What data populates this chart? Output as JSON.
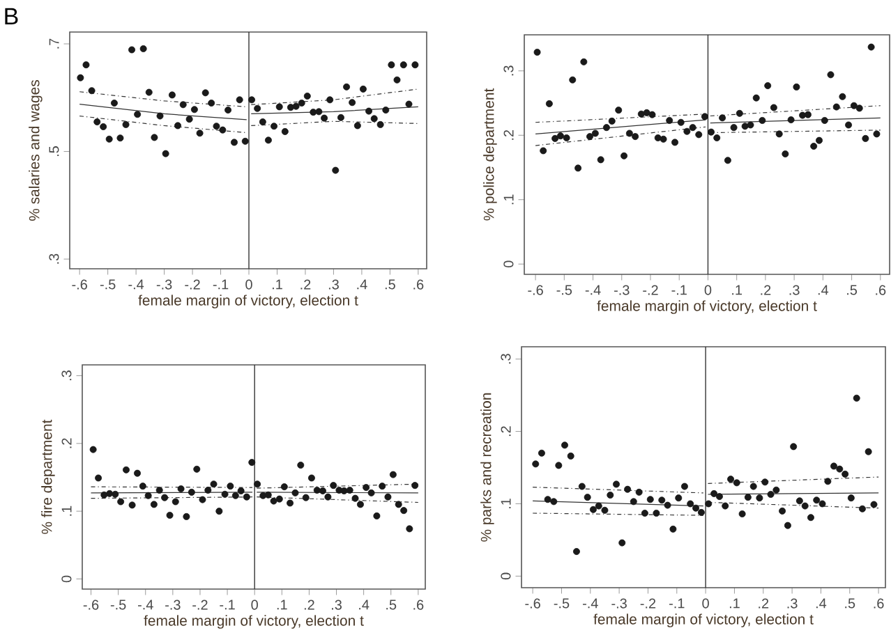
{
  "chart_data": [
    {
      "type": "scatter",
      "title": "B",
      "xlabel": "female margin of victory, election t",
      "ylabel": "% salaries and wages",
      "xlim": [
        -0.635,
        0.63
      ],
      "ylim": [
        0.282,
        0.722
      ],
      "xticks": [
        {
          "value": -0.6,
          "label": "-.6"
        },
        {
          "value": -0.5,
          "label": "-.5"
        },
        {
          "value": -0.4,
          "label": "-.4"
        },
        {
          "value": -0.3,
          "label": "-.3"
        },
        {
          "value": -0.2,
          "label": "-.2"
        },
        {
          "value": -0.1,
          "label": "-.1"
        },
        0,
        {
          "value": 0.1,
          "label": ".1"
        },
        {
          "value": 0.2,
          "label": ".2"
        },
        {
          "value": 0.3,
          "label": ".3"
        },
        {
          "value": 0.4,
          "label": ".4"
        },
        {
          "value": 0.5,
          "label": ".5"
        },
        {
          "value": 0.6,
          "label": ".6"
        }
      ],
      "yticks": [
        {
          "value": 0.3,
          "label": ".3"
        },
        {
          "value": 0.5,
          "label": ".5"
        },
        {
          "value": 0.7,
          "label": ".7"
        }
      ],
      "ref_lines": [
        {
          "axis": "x",
          "value": 0,
          "color": "#333333"
        }
      ],
      "series": [
        {
          "marker": "circle",
          "color": "#1a1a1a",
          "x": [
            -0.597,
            -0.577,
            -0.557,
            -0.538,
            -0.516,
            -0.495,
            -0.477,
            -0.456,
            -0.436,
            -0.415,
            -0.395,
            -0.374,
            -0.354,
            -0.335,
            -0.315,
            -0.295,
            -0.272,
            -0.252,
            -0.233,
            -0.211,
            -0.193,
            -0.174,
            -0.154,
            -0.133,
            -0.115,
            -0.093,
            -0.074,
            -0.052,
            -0.033,
            -0.013,
            0.01,
            0.03,
            0.049,
            0.069,
            0.089,
            0.108,
            0.128,
            0.148,
            0.167,
            0.187,
            0.207,
            0.228,
            0.248,
            0.267,
            0.287,
            0.307,
            0.326,
            0.346,
            0.366,
            0.385,
            0.405,
            0.425,
            0.444,
            0.466,
            0.485,
            0.505,
            0.525,
            0.548,
            0.567,
            0.589
          ],
          "values": [
            0.637,
            0.661,
            0.613,
            0.555,
            0.546,
            0.523,
            0.59,
            0.525,
            0.55,
            0.689,
            0.569,
            0.691,
            0.61,
            0.526,
            0.566,
            0.496,
            0.605,
            0.548,
            0.587,
            0.56,
            0.578,
            0.534,
            0.609,
            0.59,
            0.547,
            0.54,
            0.577,
            0.517,
            0.596,
            0.519,
            0.596,
            0.58,
            0.555,
            0.521,
            0.547,
            0.583,
            0.537,
            0.582,
            0.584,
            0.59,
            0.603,
            0.573,
            0.574,
            0.562,
            0.596,
            0.465,
            0.563,
            0.62,
            0.591,
            0.548,
            0.616,
            0.575,
            0.561,
            0.55,
            0.577,
            0.661,
            0.633,
            0.661,
            0.588,
            0.661
          ]
        },
        {
          "type": "line",
          "marker": "none",
          "line_style": "solid",
          "color": "#333333",
          "x": [
            -0.6,
            -0.3,
            -0.008
          ],
          "values": [
            0.588,
            0.57,
            0.559
          ]
        },
        {
          "type": "line",
          "marker": "none",
          "line_style": "dashed",
          "color": "#333333",
          "x": [
            -0.6,
            -0.3,
            -0.008
          ],
          "values": [
            0.611,
            0.594,
            0.583
          ]
        },
        {
          "type": "line",
          "marker": "none",
          "line_style": "dashed",
          "color": "#333333",
          "x": [
            -0.6,
            -0.3,
            -0.008
          ],
          "values": [
            0.566,
            0.548,
            0.535
          ]
        },
        {
          "type": "line",
          "marker": "none",
          "line_style": "solid",
          "color": "#333333",
          "x": [
            0.008,
            0.3,
            0.6
          ],
          "values": [
            0.57,
            0.574,
            0.583
          ]
        },
        {
          "type": "line",
          "marker": "none",
          "line_style": "dashed",
          "color": "#333333",
          "x": [
            0.008,
            0.3,
            0.6
          ],
          "values": [
            0.587,
            0.596,
            0.616
          ]
        },
        {
          "type": "line",
          "marker": "none",
          "line_style": "dashed",
          "color": "#333333",
          "x": [
            0.008,
            0.3,
            0.6
          ],
          "values": [
            0.548,
            0.556,
            0.552
          ]
        }
      ]
    },
    {
      "type": "scatter",
      "xlabel": "female margin of victory, election t",
      "ylabel": "% police department",
      "xlim": [
        -0.639,
        0.632
      ],
      "ylim": [
        -0.016,
        0.356
      ],
      "xticks": [
        {
          "value": -0.6,
          "label": "-.6"
        },
        {
          "value": -0.5,
          "label": "-.5"
        },
        {
          "value": -0.4,
          "label": "-.4"
        },
        {
          "value": -0.3,
          "label": "-.3"
        },
        {
          "value": -0.2,
          "label": "-.2"
        },
        {
          "value": -0.1,
          "label": "-.1"
        },
        0,
        {
          "value": 0.1,
          "label": ".1"
        },
        {
          "value": 0.2,
          "label": ".2"
        },
        {
          "value": 0.3,
          "label": ".3"
        },
        {
          "value": 0.4,
          "label": ".4"
        },
        {
          "value": 0.5,
          "label": ".5"
        },
        {
          "value": 0.6,
          "label": ".6"
        }
      ],
      "yticks": [
        0,
        {
          "value": 0.1,
          "label": ".1"
        },
        {
          "value": 0.2,
          "label": ".2"
        },
        {
          "value": 0.3,
          "label": ".3"
        }
      ],
      "ref_lines": [
        {
          "axis": "x",
          "value": 0,
          "color": "#333333"
        }
      ],
      "series": [
        {
          "marker": "circle",
          "color": "#1a1a1a",
          "x": [
            -0.594,
            -0.573,
            -0.552,
            -0.532,
            -0.513,
            -0.492,
            -0.471,
            -0.452,
            -0.432,
            -0.411,
            -0.392,
            -0.373,
            -0.353,
            -0.334,
            -0.311,
            -0.292,
            -0.273,
            -0.253,
            -0.232,
            -0.213,
            -0.194,
            -0.174,
            -0.155,
            -0.134,
            -0.115,
            -0.094,
            -0.073,
            -0.053,
            -0.032,
            -0.011,
            0.011,
            0.031,
            0.05,
            0.069,
            0.09,
            0.11,
            0.129,
            0.148,
            0.168,
            0.189,
            0.208,
            0.229,
            0.248,
            0.269,
            0.289,
            0.308,
            0.329,
            0.348,
            0.368,
            0.387,
            0.406,
            0.427,
            0.447,
            0.468,
            0.489,
            0.508,
            0.527,
            0.548,
            0.568,
            0.587
          ],
          "values": [
            0.329,
            0.176,
            0.249,
            0.195,
            0.199,
            0.196,
            0.286,
            0.149,
            0.314,
            0.198,
            0.203,
            0.162,
            0.212,
            0.222,
            0.239,
            0.168,
            0.203,
            0.198,
            0.233,
            0.235,
            0.232,
            0.196,
            0.194,
            0.223,
            0.189,
            0.22,
            0.206,
            0.212,
            0.201,
            0.229,
            0.205,
            0.196,
            0.227,
            0.161,
            0.212,
            0.234,
            0.214,
            0.216,
            0.258,
            0.223,
            0.277,
            0.243,
            0.202,
            0.171,
            0.224,
            0.275,
            0.231,
            0.232,
            0.183,
            0.192,
            0.223,
            0.294,
            0.244,
            0.26,
            0.216,
            0.246,
            0.242,
            0.195,
            0.337,
            0.202
          ]
        },
        {
          "type": "line",
          "marker": "none",
          "line_style": "solid",
          "color": "#333333",
          "x": [
            -0.6,
            -0.008
          ],
          "values": [
            0.202,
            0.224
          ]
        },
        {
          "type": "line",
          "marker": "none",
          "line_style": "dashed",
          "color": "#333333",
          "x": [
            -0.6,
            -0.008
          ],
          "values": [
            0.22,
            0.233
          ]
        },
        {
          "type": "line",
          "marker": "none",
          "line_style": "dashed",
          "color": "#333333",
          "x": [
            -0.6,
            -0.008
          ],
          "values": [
            0.184,
            0.213
          ]
        },
        {
          "type": "line",
          "marker": "none",
          "line_style": "solid",
          "color": "#333333",
          "x": [
            0.008,
            0.6
          ],
          "values": [
            0.219,
            0.227
          ]
        },
        {
          "type": "line",
          "marker": "none",
          "line_style": "dashed",
          "color": "#333333",
          "x": [
            0.008,
            0.6
          ],
          "values": [
            0.23,
            0.246
          ]
        },
        {
          "type": "line",
          "marker": "none",
          "line_style": "dashed",
          "color": "#333333",
          "x": [
            0.008,
            0.6
          ],
          "values": [
            0.204,
            0.208
          ]
        }
      ]
    },
    {
      "type": "scatter",
      "xlabel": "female margin of victory, election t",
      "ylabel": "% fire department",
      "xlim": [
        -0.632,
        0.626
      ],
      "ylim": [
        -0.015,
        0.316
      ],
      "xticks": [
        {
          "value": -0.6,
          "label": "-.6"
        },
        {
          "value": -0.5,
          "label": "-.5"
        },
        {
          "value": -0.4,
          "label": "-.4"
        },
        {
          "value": -0.3,
          "label": "-.3"
        },
        {
          "value": -0.2,
          "label": "-.2"
        },
        {
          "value": -0.1,
          "label": "-.1"
        },
        0,
        {
          "value": 0.1,
          "label": ".1"
        },
        {
          "value": 0.2,
          "label": ".2"
        },
        {
          "value": 0.3,
          "label": ".3"
        },
        {
          "value": 0.4,
          "label": ".4"
        },
        {
          "value": 0.5,
          "label": ".5"
        },
        {
          "value": 0.6,
          "label": ".6"
        }
      ],
      "yticks": [
        0,
        {
          "value": 0.1,
          "label": ".1"
        },
        {
          "value": 0.2,
          "label": ".2"
        },
        {
          "value": 0.3,
          "label": ".3"
        }
      ],
      "ref_lines": [
        {
          "axis": "x",
          "value": 0,
          "color": "#333333"
        }
      ],
      "series": [
        {
          "marker": "circle",
          "color": "#1a1a1a",
          "x": [
            -0.592,
            -0.573,
            -0.552,
            -0.532,
            -0.511,
            -0.491,
            -0.471,
            -0.449,
            -0.43,
            -0.41,
            -0.39,
            -0.369,
            -0.349,
            -0.33,
            -0.311,
            -0.29,
            -0.27,
            -0.25,
            -0.231,
            -0.212,
            -0.191,
            -0.171,
            -0.15,
            -0.13,
            -0.109,
            -0.089,
            -0.07,
            -0.05,
            -0.029,
            -0.01,
            0.01,
            0.031,
            0.05,
            0.07,
            0.091,
            0.109,
            0.13,
            0.149,
            0.169,
            0.188,
            0.209,
            0.229,
            0.25,
            0.269,
            0.289,
            0.31,
            0.328,
            0.349,
            0.369,
            0.388,
            0.409,
            0.428,
            0.448,
            0.468,
            0.489,
            0.508,
            0.528,
            0.547,
            0.568,
            0.588
          ],
          "values": [
            0.191,
            0.149,
            0.124,
            0.126,
            0.125,
            0.114,
            0.161,
            0.109,
            0.156,
            0.137,
            0.123,
            0.11,
            0.131,
            0.12,
            0.094,
            0.114,
            0.133,
            0.092,
            0.128,
            0.162,
            0.117,
            0.131,
            0.14,
            0.1,
            0.125,
            0.137,
            0.123,
            0.13,
            0.121,
            0.172,
            0.14,
            0.123,
            0.124,
            0.115,
            0.118,
            0.136,
            0.112,
            0.127,
            0.168,
            0.12,
            0.149,
            0.131,
            0.13,
            0.121,
            0.138,
            0.131,
            0.13,
            0.131,
            0.119,
            0.11,
            0.135,
            0.127,
            0.093,
            0.137,
            0.121,
            0.154,
            0.11,
            0.101,
            0.074,
            0.138
          ]
        },
        {
          "type": "line",
          "marker": "none",
          "line_style": "solid",
          "color": "#333333",
          "x": [
            -0.6,
            -0.008
          ],
          "values": [
            0.127,
            0.128
          ]
        },
        {
          "type": "line",
          "marker": "none",
          "line_style": "dashed",
          "color": "#333333",
          "x": [
            -0.6,
            -0.008
          ],
          "values": [
            0.136,
            0.135
          ]
        },
        {
          "type": "line",
          "marker": "none",
          "line_style": "dashed",
          "color": "#333333",
          "x": [
            -0.6,
            -0.008
          ],
          "values": [
            0.119,
            0.121
          ]
        },
        {
          "type": "line",
          "marker": "none",
          "line_style": "solid",
          "color": "#333333",
          "x": [
            0.008,
            0.6
          ],
          "values": [
            0.128,
            0.127
          ]
        },
        {
          "type": "line",
          "marker": "none",
          "line_style": "dashed",
          "color": "#333333",
          "x": [
            0.008,
            0.6
          ],
          "values": [
            0.134,
            0.14
          ]
        },
        {
          "type": "line",
          "marker": "none",
          "line_style": "dashed",
          "color": "#333333",
          "x": [
            0.008,
            0.6
          ],
          "values": [
            0.121,
            0.113
          ]
        }
      ]
    },
    {
      "type": "scatter",
      "xlabel": "female margin of victory, election t",
      "ylabel": "% parks and recreation",
      "xlim": [
        -0.639,
        0.624
      ],
      "ylim": [
        -0.016,
        0.317
      ],
      "xticks": [
        {
          "value": -0.6,
          "label": "-.6"
        },
        {
          "value": -0.5,
          "label": "-.5"
        },
        {
          "value": -0.4,
          "label": "-.4"
        },
        {
          "value": -0.3,
          "label": "-.3"
        },
        {
          "value": -0.2,
          "label": "-.2"
        },
        {
          "value": -0.1,
          "label": "-.1"
        },
        0,
        {
          "value": 0.1,
          "label": ".1"
        },
        {
          "value": 0.2,
          "label": ".2"
        },
        {
          "value": 0.3,
          "label": ".3"
        },
        {
          "value": 0.4,
          "label": ".4"
        },
        {
          "value": 0.5,
          "label": ".5"
        },
        {
          "value": 0.6,
          "label": ".6"
        }
      ],
      "yticks": [
        0,
        {
          "value": 0.1,
          "label": ".1"
        },
        {
          "value": 0.2,
          "label": ".2"
        },
        {
          "value": 0.3,
          "label": ".3"
        }
      ],
      "ref_lines": [
        {
          "axis": "x",
          "value": 0,
          "color": "#333333"
        }
      ],
      "series": [
        {
          "marker": "circle",
          "color": "#1a1a1a",
          "x": [
            -0.59,
            -0.569,
            -0.548,
            -0.527,
            -0.51,
            -0.489,
            -0.468,
            -0.448,
            -0.429,
            -0.41,
            -0.39,
            -0.371,
            -0.35,
            -0.331,
            -0.31,
            -0.29,
            -0.271,
            -0.25,
            -0.231,
            -0.211,
            -0.192,
            -0.171,
            -0.152,
            -0.132,
            -0.113,
            -0.094,
            -0.073,
            -0.053,
            -0.034,
            -0.015,
            0.01,
            0.029,
            0.048,
            0.068,
            0.087,
            0.108,
            0.127,
            0.147,
            0.166,
            0.187,
            0.206,
            0.226,
            0.245,
            0.266,
            0.285,
            0.305,
            0.326,
            0.345,
            0.365,
            0.385,
            0.405,
            0.424,
            0.445,
            0.465,
            0.484,
            0.505,
            0.524,
            0.544,
            0.565,
            0.584
          ],
          "values": [
            0.155,
            0.17,
            0.106,
            0.103,
            0.153,
            0.181,
            0.166,
            0.034,
            0.124,
            0.109,
            0.092,
            0.097,
            0.091,
            0.112,
            0.127,
            0.046,
            0.12,
            0.103,
            0.116,
            0.087,
            0.106,
            0.087,
            0.105,
            0.098,
            0.065,
            0.108,
            0.124,
            0.1,
            0.094,
            0.088,
            0.1,
            0.114,
            0.11,
            0.097,
            0.134,
            0.129,
            0.086,
            0.109,
            0.124,
            0.108,
            0.13,
            0.113,
            0.119,
            0.09,
            0.07,
            0.179,
            0.104,
            0.097,
            0.081,
            0.105,
            0.1,
            0.131,
            0.152,
            0.148,
            0.141,
            0.108,
            0.246,
            0.093,
            0.172,
            0.099
          ]
        },
        {
          "type": "line",
          "marker": "none",
          "line_style": "solid",
          "color": "#333333",
          "x": [
            -0.6,
            -0.008
          ],
          "values": [
            0.104,
            0.097
          ]
        },
        {
          "type": "line",
          "marker": "none",
          "line_style": "dashed",
          "color": "#333333",
          "x": [
            -0.6,
            -0.008
          ],
          "values": [
            0.123,
            0.115
          ]
        },
        {
          "type": "line",
          "marker": "none",
          "line_style": "dashed",
          "color": "#333333",
          "x": [
            -0.6,
            -0.008
          ],
          "values": [
            0.087,
            0.084
          ]
        },
        {
          "type": "line",
          "marker": "none",
          "line_style": "solid",
          "color": "#333333",
          "x": [
            0.008,
            0.6
          ],
          "values": [
            0.113,
            0.115
          ]
        },
        {
          "type": "line",
          "marker": "none",
          "line_style": "dashed",
          "color": "#333333",
          "x": [
            0.008,
            0.6
          ],
          "values": [
            0.128,
            0.137
          ]
        },
        {
          "type": "line",
          "marker": "none",
          "line_style": "dashed",
          "color": "#333333",
          "x": [
            0.008,
            0.6
          ],
          "values": [
            0.102,
            0.094
          ]
        }
      ]
    }
  ]
}
